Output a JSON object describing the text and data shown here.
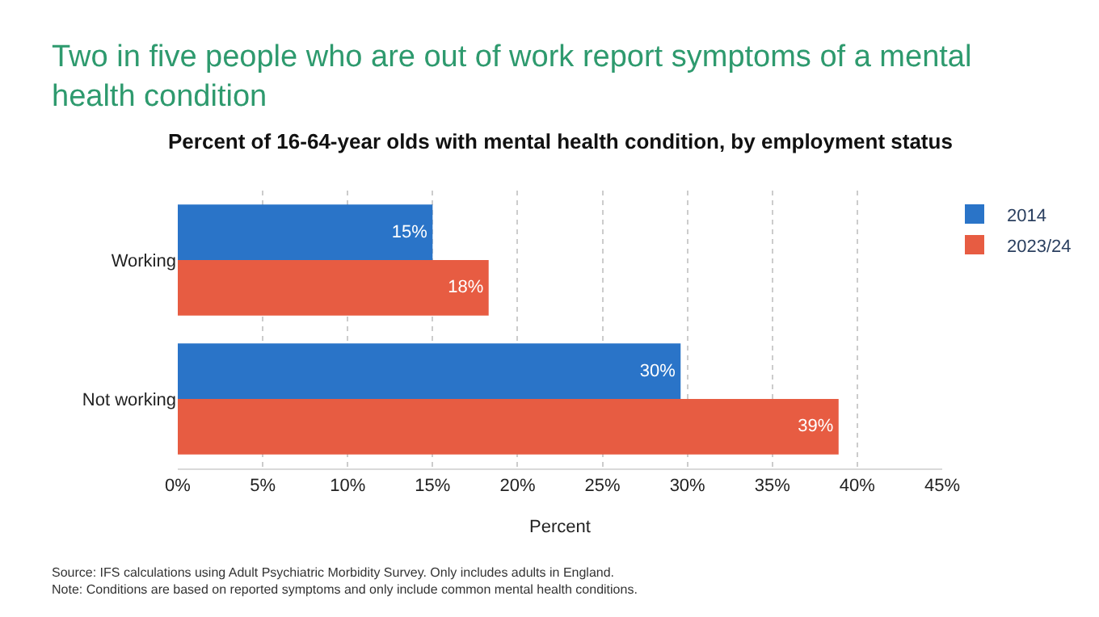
{
  "chart_data": {
    "type": "bar",
    "orientation": "horizontal",
    "title": "Two in five people who are out of work report symptoms of a mental health condition",
    "subtitle": "Percent of 16-64-year olds with mental health condition, by employment status",
    "xlabel": "Percent",
    "categories": [
      "Working",
      "Not working"
    ],
    "series": [
      {
        "name": "2014",
        "color": "#2a74c8",
        "values": [
          15,
          29.6
        ],
        "value_labels": [
          "15%",
          "30%"
        ]
      },
      {
        "name": "2023/24",
        "color": "#e75c42",
        "values": [
          18.3,
          38.9
        ],
        "value_labels": [
          "18%",
          "39%"
        ]
      }
    ],
    "xlim": [
      0,
      45
    ],
    "xticks": [
      {
        "value": 0,
        "label": "0%"
      },
      {
        "value": 5,
        "label": "5%"
      },
      {
        "value": 10,
        "label": "10%"
      },
      {
        "value": 15,
        "label": "15%"
      },
      {
        "value": 20,
        "label": "20%"
      },
      {
        "value": 25,
        "label": "25%"
      },
      {
        "value": 30,
        "label": "30%"
      },
      {
        "value": 35,
        "label": "35%"
      },
      {
        "value": 40,
        "label": "40%"
      },
      {
        "value": 45,
        "label": "45%"
      }
    ],
    "grid": "x",
    "legend": "top right",
    "annotations": [
      "Source: IFS calculations using Adult Psychiatric Morbidity Survey. Only includes adults in England.",
      "Note: Conditions are based on reported symptoms and only include common mental health conditions."
    ]
  }
}
